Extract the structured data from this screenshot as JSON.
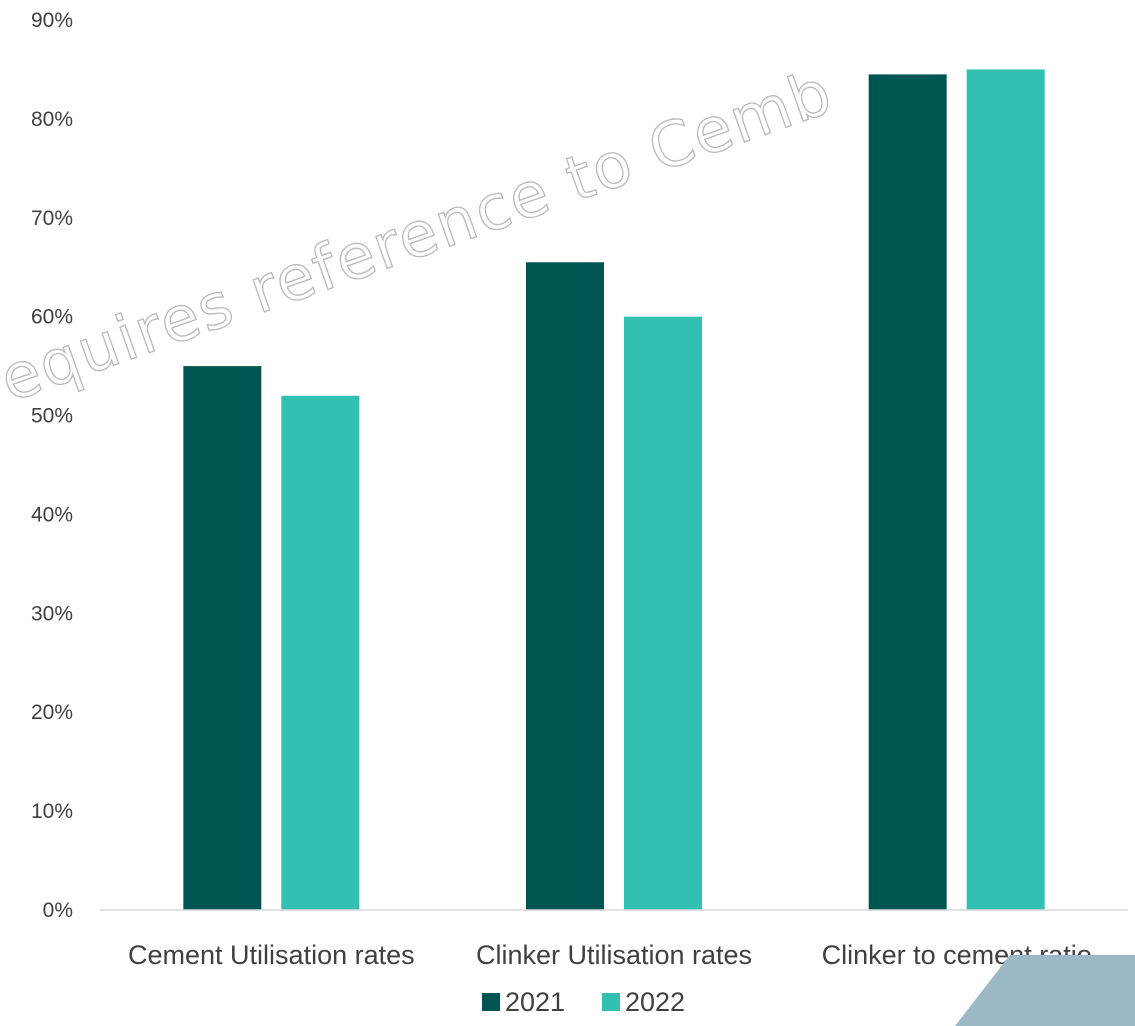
{
  "chart_data": {
    "type": "bar",
    "title": "",
    "xlabel": "",
    "ylabel": "",
    "categories": [
      "Cement Utilisation rates",
      "Clinker Utilisation rates",
      "Clinker to cement ratio"
    ],
    "series": [
      {
        "name": "2021",
        "values": [
          55,
          65.5,
          84.5
        ],
        "color": "#005552"
      },
      {
        "name": "2022",
        "values": [
          52,
          60,
          85
        ],
        "color": "#32c0b3"
      }
    ],
    "ylim": [
      0,
      90
    ],
    "y_ticks": [
      "0%",
      "10%",
      "20%",
      "30%",
      "40%",
      "50%",
      "60%",
      "70%",
      "80%",
      "90%"
    ],
    "grid": false,
    "legend_position": "bottom"
  },
  "watermark": {
    "text": "equires reference to Cemb"
  }
}
